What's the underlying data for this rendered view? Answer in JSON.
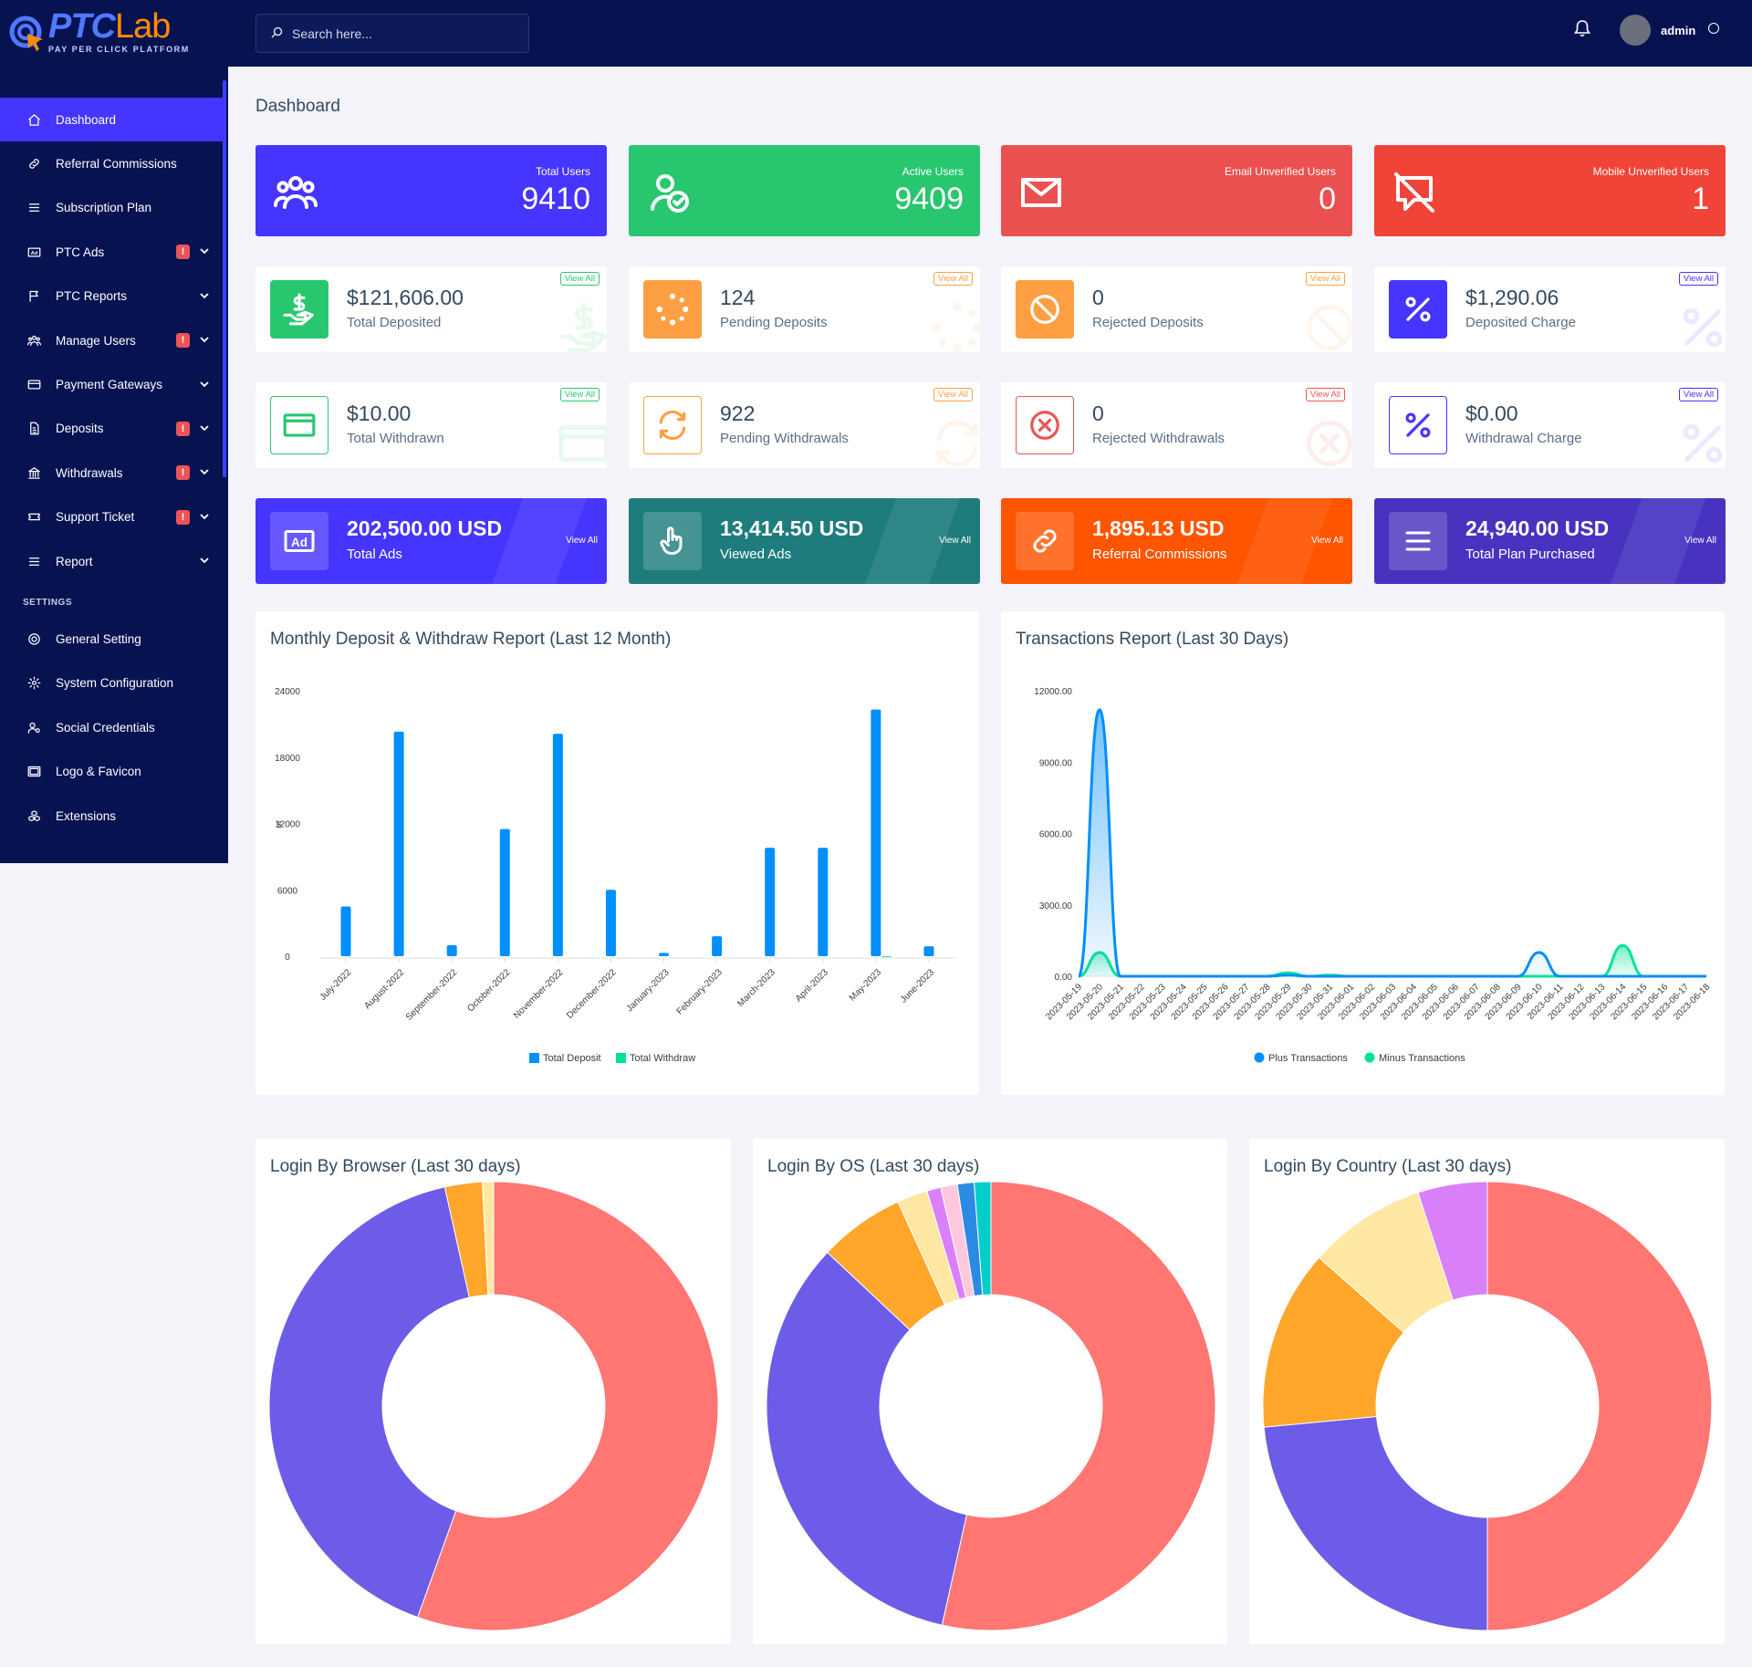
{
  "brand": {
    "word_ptc": "PTC",
    "word_lab": "Lab",
    "tagline": "PAY PER CLICK PLATFORM"
  },
  "colors": {
    "sidebar_bg": "#071251",
    "accent": "#4634ff",
    "success": "#28c76f",
    "danger": "#ea5455",
    "warning": "#ff9f43",
    "info": "#00cfe8"
  },
  "topbar": {
    "search_placeholder": "Search here...",
    "user_name": "admin"
  },
  "sidebar": {
    "items": [
      {
        "label": "Dashboard",
        "icon": "home-icon",
        "active": true
      },
      {
        "label": "Referral Commissions",
        "icon": "link-icon"
      },
      {
        "label": "Subscription Plan",
        "icon": "list-icon"
      },
      {
        "label": "PTC Ads",
        "icon": "ad-icon",
        "badge": "!",
        "chevron": true
      },
      {
        "label": "PTC Reports",
        "icon": "flag-icon",
        "chevron": true
      },
      {
        "label": "Manage Users",
        "icon": "users-icon",
        "badge": "!",
        "chevron": true
      },
      {
        "label": "Payment Gateways",
        "icon": "credit-card-icon",
        "chevron": true
      },
      {
        "label": "Deposits",
        "icon": "file-dollar-icon",
        "badge": "!",
        "chevron": true
      },
      {
        "label": "Withdrawals",
        "icon": "bank-icon",
        "badge": "!",
        "chevron": true
      },
      {
        "label": "Support Ticket",
        "icon": "ticket-icon",
        "badge": "!",
        "chevron": true
      },
      {
        "label": "Report",
        "icon": "list-icon",
        "chevron": true
      }
    ],
    "settings_title": "SETTINGS",
    "settings_items": [
      {
        "label": "General Setting",
        "icon": "life-ring-icon"
      },
      {
        "label": "System Configuration",
        "icon": "gear-icon"
      },
      {
        "label": "Social Credentials",
        "icon": "user-gear-icon"
      },
      {
        "label": "Logo & Favicon",
        "icon": "image-icon"
      },
      {
        "label": "Extensions",
        "icon": "cubes-icon"
      }
    ]
  },
  "page_title": "Dashboard",
  "top_stats": [
    {
      "label": "Total Users",
      "value": "9410",
      "color": "#4634ff",
      "icon": "users-icon"
    },
    {
      "label": "Active Users",
      "value": "9409",
      "color": "#28c76f",
      "icon": "user-check-icon"
    },
    {
      "label": "Email Unverified Users",
      "value": "0",
      "color": "#eb5050",
      "icon": "envelope-icon"
    },
    {
      "label": "Mobile Unverified Users",
      "value": "1",
      "color": "#f04438",
      "icon": "comment-slash-icon"
    }
  ],
  "deposit_stats": [
    {
      "value": "$121,606.00",
      "label": "Total Deposited",
      "color": "#28c76f",
      "icon": "hand-dollar-icon",
      "view_all": "View All"
    },
    {
      "value": "124",
      "label": "Pending Deposits",
      "color": "#ff9f43",
      "icon": "spinner-icon",
      "view_all": "View All"
    },
    {
      "value": "0",
      "label": "Rejected Deposits",
      "color": "#ff9f43",
      "icon": "ban-icon",
      "view_all": "View All"
    },
    {
      "value": "$1,290.06",
      "label": "Deposited Charge",
      "color": "#4634ff",
      "icon": "percent-icon",
      "view_all": "View All"
    }
  ],
  "withdraw_stats": [
    {
      "value": "$10.00",
      "label": "Total Withdrawn",
      "color": "#28c76f",
      "icon": "card-icon",
      "view_all": "View All"
    },
    {
      "value": "922",
      "label": "Pending Withdrawals",
      "color": "#ff9f43",
      "icon": "sync-icon",
      "view_all": "View All"
    },
    {
      "value": "0",
      "label": "Rejected Withdrawals",
      "color": "#ea5455",
      "icon": "times-circle-icon",
      "view_all": "View All"
    },
    {
      "value": "$0.00",
      "label": "Withdrawal Charge",
      "color": "#4634ff",
      "icon": "percent-icon",
      "view_all": "View All"
    }
  ],
  "color_stats": [
    {
      "value": "202,500.00 USD",
      "label": "Total Ads",
      "color": "#4634ff",
      "icon": "ad-icon",
      "view_all": "View All"
    },
    {
      "value": "13,414.50 USD",
      "label": "Viewed Ads",
      "color": "#1e7c7c",
      "icon": "pointer-icon",
      "view_all": "View All"
    },
    {
      "value": "1,895.13 USD",
      "label": "Referral Commissions",
      "color": "#ff5400",
      "icon": "link-icon",
      "view_all": "View All"
    },
    {
      "value": "24,940.00 USD",
      "label": "Total Plan Purchased",
      "color": "#4733c0",
      "icon": "list-icon",
      "view_all": "View All"
    }
  ],
  "charts_titles": {
    "monthly": "Monthly Deposit & Withdraw Report (Last 12 Month)",
    "transactions": "Transactions Report (Last 30 Days)",
    "browser": "Login By Browser (Last 30 days)",
    "os": "Login By OS (Last 30 days)",
    "country": "Login By Country (Last 30 days)"
  },
  "chart_data": [
    {
      "type": "bar",
      "title": "Monthly Deposit & Withdraw Report (Last 12 Month)",
      "ylabel": "$",
      "categories": [
        "July-2022",
        "August-2022",
        "September-2022",
        "October-2022",
        "November-2022",
        "December-2022",
        "January-2023",
        "February-2023",
        "March-2023",
        "April-2023",
        "May-2023",
        "June-2023"
      ],
      "series": [
        {
          "name": "Total Deposit",
          "color": "#008ffb",
          "values": [
            4500,
            20300,
            1000,
            11500,
            20100,
            6000,
            300,
            1800,
            9800,
            9800,
            22300,
            900
          ]
        },
        {
          "name": "Total Withdraw",
          "color": "#00e396",
          "values": [
            0,
            0,
            0,
            0,
            0,
            0,
            0,
            0,
            0,
            0,
            10,
            0
          ]
        }
      ],
      "yticks": [
        "24000",
        "18000",
        "12000",
        "6000",
        "0"
      ],
      "ylim": [
        0,
        24000
      ],
      "legend": "bottom"
    },
    {
      "type": "area",
      "title": "Transactions Report (Last 30 Days)",
      "x": [
        "2023-05-19",
        "2023-05-20",
        "2023-05-21",
        "2023-05-22",
        "2023-05-23",
        "2023-05-24",
        "2023-05-25",
        "2023-05-26",
        "2023-05-27",
        "2023-05-28",
        "2023-05-29",
        "2023-05-30",
        "2023-05-31",
        "2023-06-01",
        "2023-06-02",
        "2023-06-03",
        "2023-06-04",
        "2023-06-05",
        "2023-06-06",
        "2023-06-07",
        "2023-06-08",
        "2023-06-09",
        "2023-06-10",
        "2023-06-11",
        "2023-06-12",
        "2023-06-13",
        "2023-06-14",
        "2023-06-15",
        "2023-06-16",
        "2023-06-17",
        "2023-06-18"
      ],
      "series": [
        {
          "name": "Plus Transactions",
          "color": "#008ffb",
          "values": [
            0,
            11200,
            0,
            0,
            0,
            0,
            0,
            0,
            0,
            0,
            50,
            0,
            0,
            0,
            0,
            0,
            0,
            0,
            0,
            0,
            0,
            0,
            1000,
            0,
            0,
            0,
            0,
            0,
            0,
            0,
            0
          ]
        },
        {
          "name": "Minus Transactions",
          "color": "#00e396",
          "values": [
            0,
            1000,
            0,
            0,
            0,
            0,
            0,
            0,
            0,
            0,
            150,
            0,
            50,
            0,
            0,
            0,
            0,
            0,
            0,
            0,
            0,
            0,
            0,
            0,
            0,
            0,
            1300,
            0,
            0,
            0,
            0
          ]
        }
      ],
      "yticks": [
        "12000.00",
        "9000.00",
        "6000.00",
        "3000.00",
        "0.00"
      ],
      "ylim": [
        0,
        12000
      ],
      "legend": "bottom"
    },
    {
      "type": "pie",
      "title": "Login By Browser (Last 30 days)",
      "slices": [
        {
          "value": 55.5,
          "color": "#ff7673"
        },
        {
          "value": 41.0,
          "color": "#6c5ce7"
        },
        {
          "value": 2.7,
          "color": "#ffa62b"
        },
        {
          "value": 0.8,
          "color": "#ffe8a3"
        }
      ]
    },
    {
      "type": "pie",
      "title": "Login By OS (Last 30 days)",
      "slices": [
        {
          "value": 53.5,
          "color": "#ff7673"
        },
        {
          "value": 33.5,
          "color": "#6c5ce7"
        },
        {
          "value": 6.2,
          "color": "#ffa62b"
        },
        {
          "value": 2.2,
          "color": "#ffe8a3"
        },
        {
          "value": 1.0,
          "color": "#d980fa"
        },
        {
          "value": 1.2,
          "color": "#ffc8dd"
        },
        {
          "value": 1.2,
          "color": "#2b8ae2"
        },
        {
          "value": 1.2,
          "color": "#00cec9"
        }
      ]
    },
    {
      "type": "pie",
      "title": "Login By Country (Last 30 days)",
      "slices": [
        {
          "value": 50.0,
          "color": "#ff7673"
        },
        {
          "value": 23.5,
          "color": "#6c5ce7"
        },
        {
          "value": 13.0,
          "color": "#ffa62b"
        },
        {
          "value": 8.5,
          "color": "#ffe8a3"
        },
        {
          "value": 5.0,
          "color": "#d980fa"
        }
      ]
    }
  ]
}
